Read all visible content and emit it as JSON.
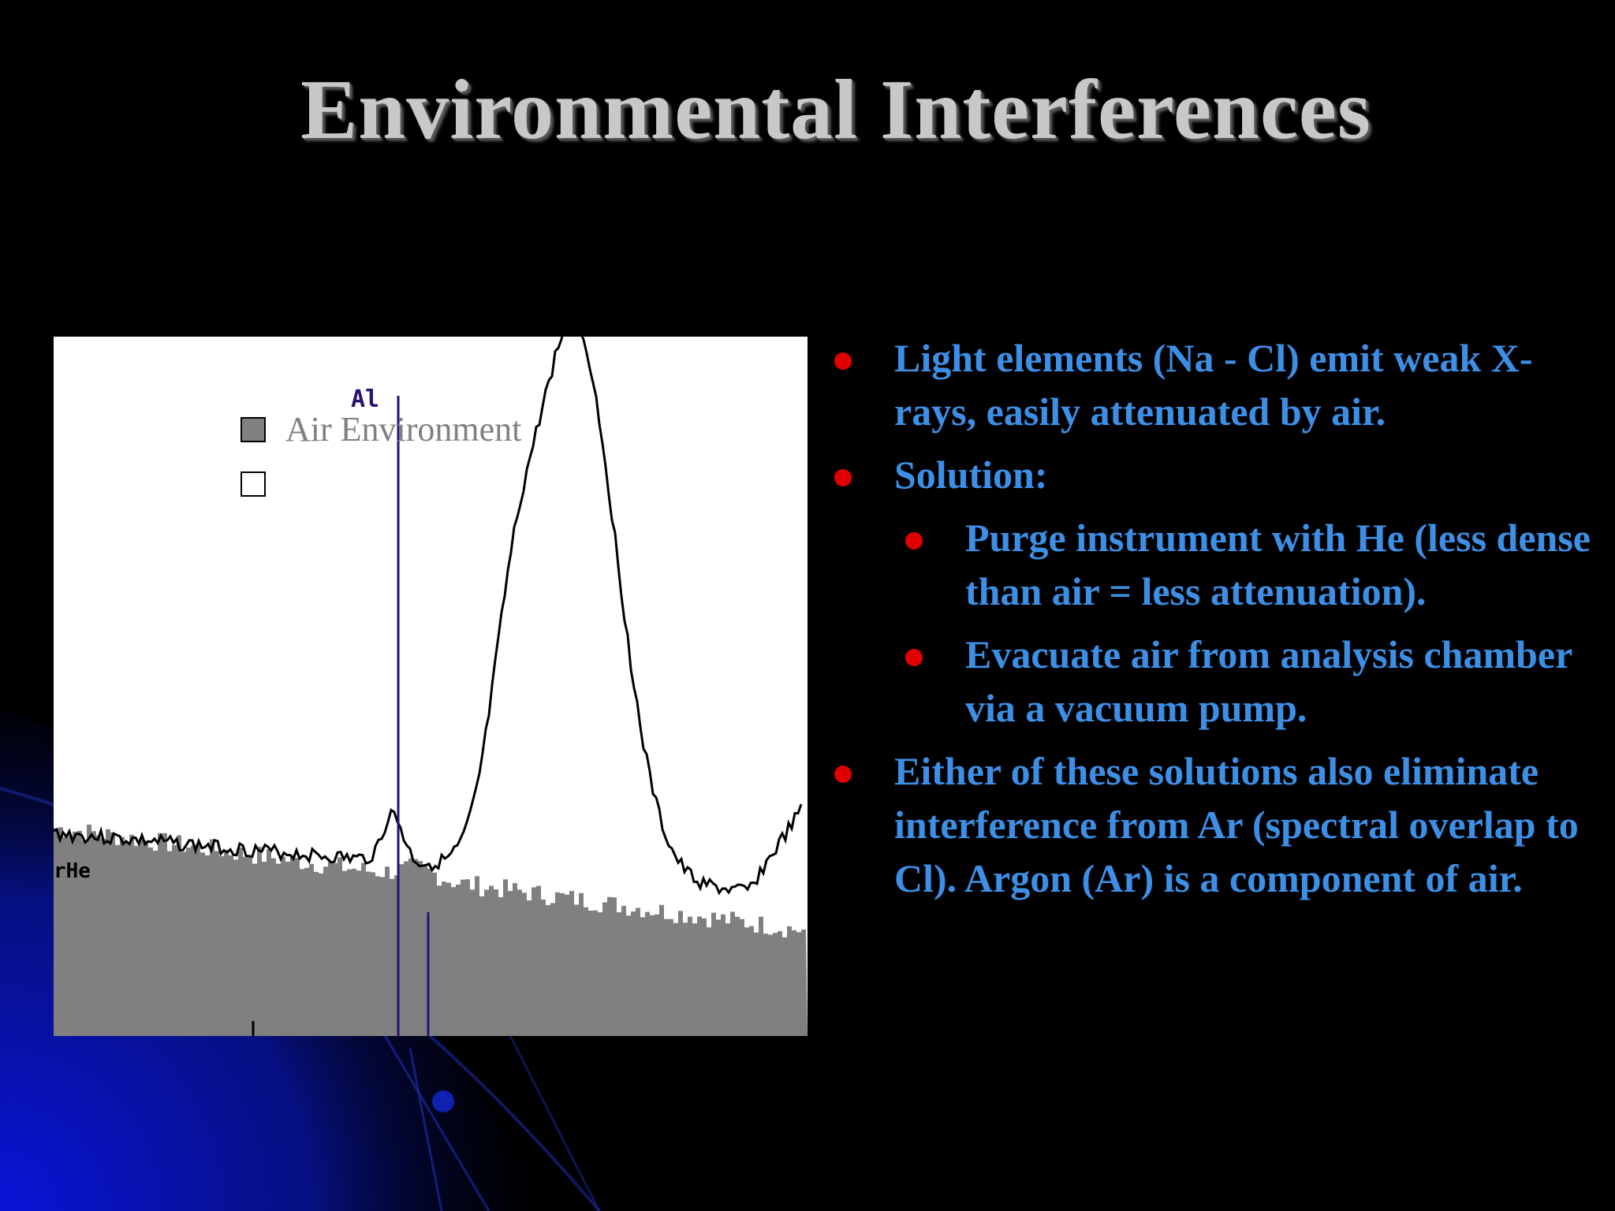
{
  "slide": {
    "title": "Environmental Interferences"
  },
  "figure": {
    "legend": {
      "air_label": "Air Environment",
      "air_swatch_color": "#808080",
      "blank_swatch_color": "#ffffff"
    },
    "peak_label": "Al",
    "partial_label": "rHe",
    "air_spectrum_color": "#808080",
    "he_spectrum_color": "#000000",
    "marker_line_color": "#2a1070"
  },
  "bullets": [
    {
      "level": 1,
      "text": "Light elements (Na - Cl) emit weak X-rays, easily attenuated by air."
    },
    {
      "level": 1,
      "text": "Solution:"
    },
    {
      "level": 2,
      "text": "Purge instrument with He (less dense than air = less attenuation)."
    },
    {
      "level": 2,
      "text": "Evacuate air from analysis chamber via a vacuum pump."
    },
    {
      "level": 1,
      "text": "Either of these solutions also eliminate interference from Ar (spectral overlap to Cl).  Argon (Ar) is a component of air."
    }
  ],
  "colors": {
    "background": "#000000",
    "title": "#c8c8c8",
    "bullet_text": "#3d8fe6",
    "bullet_dot": "#e00000",
    "accent_blue": "#0000c8"
  }
}
